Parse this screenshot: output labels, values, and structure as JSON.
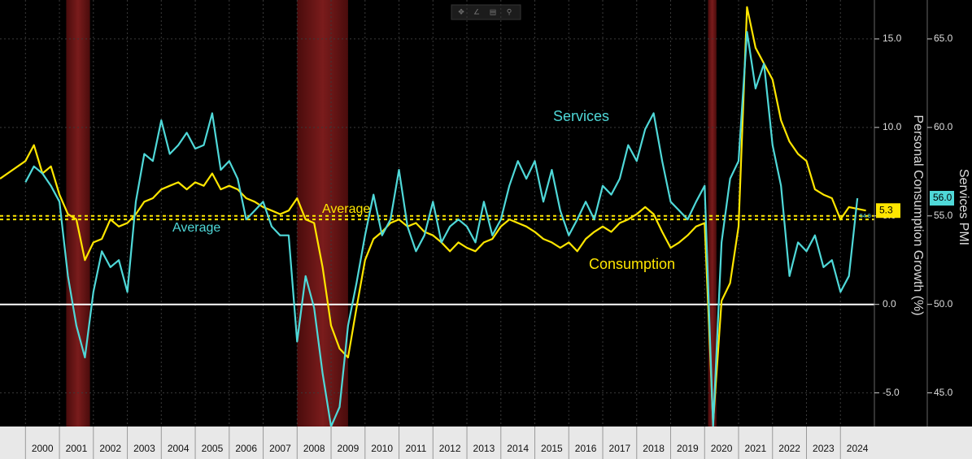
{
  "chart_data": {
    "type": "line",
    "y_label": "Personal Consumption Growth (%)",
    "y2_label": "Services PMI",
    "xlim": [
      1999.25,
      2025.0
    ],
    "xticks": [
      2000,
      2001,
      2002,
      2003,
      2004,
      2005,
      2006,
      2007,
      2008,
      2009,
      2010,
      2011,
      2012,
      2013,
      2014,
      2015,
      2016,
      2017,
      2018,
      2019,
      2020,
      2021,
      2022,
      2023,
      2024
    ],
    "ylim": [
      -6.9,
      17.2
    ],
    "yticks": [
      {
        "value": -5,
        "label": "-5.0"
      },
      {
        "value": 0,
        "label": "0.0"
      },
      {
        "value": 5,
        "label": "5.0"
      },
      {
        "value": 10,
        "label": "10.0"
      },
      {
        "value": 15,
        "label": "15.0"
      }
    ],
    "y2lim": [
      43.1,
      67.2
    ],
    "y2ticks": [
      {
        "value": 45,
        "label": "45.0"
      },
      {
        "value": 50,
        "label": "50.0"
      },
      {
        "value": 55,
        "label": "55.0"
      },
      {
        "value": 60,
        "label": "60.0"
      },
      {
        "value": 65,
        "label": "65.0"
      }
    ],
    "grid": true,
    "recessions": [
      [
        2001.2,
        2001.9
      ],
      [
        2008.0,
        2009.5
      ],
      [
        2020.1,
        2020.35
      ]
    ],
    "series": [
      {
        "name": "Consumption",
        "color": "#ffe600",
        "average": 5.0,
        "average_label": "Average",
        "x": [
          1999.25,
          2000.0,
          2000.25,
          2000.5,
          2000.75,
          2001.0,
          2001.25,
          2001.5,
          2001.75,
          2002.0,
          2002.25,
          2002.5,
          2002.75,
          2003.0,
          2003.25,
          2003.5,
          2003.75,
          2004.0,
          2004.25,
          2004.5,
          2004.75,
          2005.0,
          2005.25,
          2005.5,
          2005.75,
          2006.0,
          2006.25,
          2006.5,
          2006.75,
          2007.0,
          2007.25,
          2007.5,
          2007.75,
          2008.0,
          2008.25,
          2008.5,
          2008.75,
          2009.0,
          2009.25,
          2009.5,
          2009.75,
          2010.0,
          2010.25,
          2010.5,
          2010.75,
          2011.0,
          2011.25,
          2011.5,
          2011.75,
          2012.0,
          2012.25,
          2012.5,
          2012.75,
          2013.0,
          2013.25,
          2013.5,
          2013.75,
          2014.0,
          2014.25,
          2014.5,
          2014.75,
          2015.0,
          2015.25,
          2015.5,
          2015.75,
          2016.0,
          2016.25,
          2016.5,
          2016.75,
          2017.0,
          2017.25,
          2017.5,
          2017.75,
          2018.0,
          2018.25,
          2018.5,
          2018.75,
          2019.0,
          2019.25,
          2019.5,
          2019.75,
          2020.0,
          2020.25,
          2020.5,
          2020.75,
          2021.0,
          2021.25,
          2021.5,
          2021.75,
          2022.0,
          2022.25,
          2022.5,
          2022.75,
          2023.0,
          2023.25,
          2023.5,
          2023.75,
          2024.0,
          2024.25,
          2024.5,
          2024.75
        ],
        "values": [
          7.1,
          8.1,
          9.0,
          7.4,
          7.8,
          6.2,
          5.1,
          4.8,
          2.5,
          3.5,
          3.7,
          4.8,
          4.4,
          4.6,
          5.1,
          5.8,
          6.0,
          6.5,
          6.7,
          6.9,
          6.5,
          6.9,
          6.7,
          7.4,
          6.5,
          6.7,
          6.5,
          6.0,
          5.8,
          5.5,
          5.3,
          5.1,
          5.3,
          6.0,
          4.8,
          4.6,
          2.1,
          -1.2,
          -2.5,
          -3.0,
          -0.2,
          2.5,
          3.7,
          4.1,
          4.6,
          4.8,
          4.4,
          4.6,
          4.1,
          3.9,
          3.5,
          3.0,
          3.5,
          3.2,
          3.0,
          3.5,
          3.7,
          4.4,
          4.8,
          4.6,
          4.4,
          4.1,
          3.7,
          3.5,
          3.2,
          3.5,
          3.0,
          3.7,
          4.1,
          4.4,
          4.1,
          4.6,
          4.8,
          5.1,
          5.5,
          5.1,
          4.1,
          3.2,
          3.5,
          3.9,
          4.4,
          4.6,
          -6.7,
          0.2,
          1.2,
          4.4,
          16.8,
          14.5,
          13.6,
          12.7,
          10.4,
          9.2,
          8.5,
          8.1,
          6.5,
          6.2,
          6.0,
          4.8,
          5.5,
          5.4,
          5.3
        ]
      },
      {
        "name": "Services",
        "color": "#4fd8d8",
        "axis": "y2",
        "average": 54.8,
        "average_label": "Average",
        "last_label": "56.0",
        "x": [
          2000.0,
          2000.25,
          2000.5,
          2000.75,
          2001.0,
          2001.25,
          2001.5,
          2001.75,
          2002.0,
          2002.25,
          2002.5,
          2002.75,
          2003.0,
          2003.25,
          2003.5,
          2003.75,
          2004.0,
          2004.25,
          2004.5,
          2004.75,
          2005.0,
          2005.25,
          2005.5,
          2005.75,
          2006.0,
          2006.25,
          2006.5,
          2006.75,
          2007.0,
          2007.25,
          2007.5,
          2007.75,
          2008.0,
          2008.25,
          2008.5,
          2008.75,
          2009.0,
          2009.25,
          2009.5,
          2009.75,
          2010.0,
          2010.25,
          2010.5,
          2010.75,
          2011.0,
          2011.25,
          2011.5,
          2011.75,
          2012.0,
          2012.25,
          2012.5,
          2012.75,
          2013.0,
          2013.25,
          2013.5,
          2013.75,
          2014.0,
          2014.25,
          2014.5,
          2014.75,
          2015.0,
          2015.25,
          2015.5,
          2015.75,
          2016.0,
          2016.25,
          2016.5,
          2016.75,
          2017.0,
          2017.25,
          2017.5,
          2017.75,
          2018.0,
          2018.25,
          2018.5,
          2018.75,
          2019.0,
          2019.25,
          2019.5,
          2019.75,
          2020.0,
          2020.25,
          2020.5,
          2020.75,
          2021.0,
          2021.25,
          2021.5,
          2021.75,
          2022.0,
          2022.25,
          2022.5,
          2022.75,
          2023.0,
          2023.25,
          2023.5,
          2023.75,
          2024.0,
          2024.25,
          2024.5
        ],
        "values": [
          56.9,
          57.8,
          57.4,
          56.7,
          55.8,
          51.6,
          48.8,
          47.0,
          50.7,
          53.0,
          52.1,
          52.5,
          50.7,
          55.8,
          58.5,
          58.1,
          60.4,
          58.5,
          59.0,
          59.7,
          58.8,
          59.0,
          60.8,
          57.6,
          58.1,
          57.1,
          54.8,
          55.3,
          55.8,
          54.4,
          53.9,
          53.9,
          47.9,
          51.6,
          49.8,
          46.1,
          43.1,
          44.2,
          48.8,
          51.2,
          53.9,
          56.2,
          53.9,
          54.8,
          57.6,
          54.4,
          53.0,
          53.9,
          55.8,
          53.5,
          54.4,
          54.8,
          54.4,
          53.5,
          55.8,
          53.9,
          54.8,
          56.7,
          58.1,
          57.1,
          58.1,
          55.8,
          57.6,
          55.3,
          53.9,
          54.8,
          55.8,
          54.8,
          56.7,
          56.2,
          57.1,
          59.0,
          58.1,
          59.9,
          60.8,
          58.1,
          55.8,
          55.3,
          54.8,
          55.8,
          56.7,
          43.1,
          53.5,
          57.1,
          58.1,
          65.4,
          62.2,
          63.6,
          59.0,
          56.7,
          51.6,
          53.5,
          53.0,
          53.9,
          52.1,
          52.5,
          50.7,
          51.6,
          56.0
        ]
      }
    ]
  }
}
